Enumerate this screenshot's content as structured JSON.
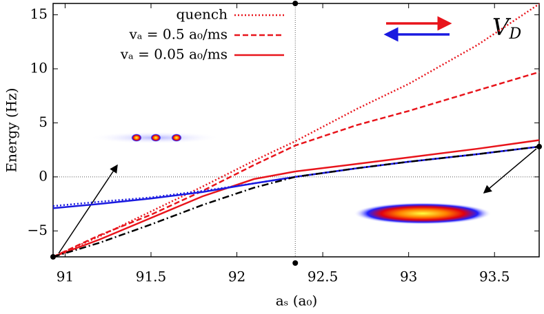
{
  "chart_data": {
    "type": "line",
    "xlabel": "aₛ (a₀)",
    "ylabel": "Energy (Hz)",
    "annotation": {
      "main": "V",
      "sub": "D"
    },
    "x": [
      90.93,
      91.2,
      91.5,
      91.8,
      92.1,
      92.34,
      92.7,
      93.0,
      93.4,
      93.76
    ],
    "series": [
      {
        "name": "quench",
        "color": "#e8141b",
        "style": "dotted",
        "values": [
          -7.4,
          -5.5,
          -3.2,
          -0.9,
          1.5,
          3.3,
          6.3,
          8.6,
          12.2,
          16.0
        ]
      },
      {
        "name": "vₐ = 0.5 a₀/ms",
        "color": "#e8141b",
        "style": "dashed",
        "values": [
          -7.4,
          -5.4,
          -3.5,
          -1.3,
          1.1,
          2.9,
          4.8,
          6.1,
          8.0,
          9.7
        ]
      },
      {
        "name": "vₐ = 0.05 a₀/ms",
        "color": "#e8141b",
        "style": "solid",
        "values": [
          -7.4,
          -5.8,
          -3.8,
          -1.8,
          -0.2,
          0.5,
          1.2,
          1.8,
          2.6,
          3.4
        ]
      },
      {
        "color": "#1a1ae0",
        "style": "dotted",
        "values": [
          -2.7,
          -2.3,
          -1.9,
          -1.3,
          -0.6,
          0,
          0.8,
          1.4,
          2.1,
          2.8
        ]
      },
      {
        "color": "#1a1ae0",
        "style": "solid",
        "values": [
          -2.9,
          -2.5,
          -2.0,
          -1.4,
          -0.6,
          0,
          0.8,
          1.4,
          2.1,
          2.8
        ]
      },
      {
        "color": "#000000",
        "style": "dashdot",
        "values": [
          -7.4,
          -6.1,
          -4.4,
          -2.6,
          -1.0,
          0,
          0.8,
          1.4,
          2.1,
          2.8
        ]
      }
    ],
    "vline": 92.34,
    "hline": 0,
    "xlim": [
      90.93,
      93.76
    ],
    "ylim": [
      -7.4,
      16.05
    ],
    "xticks": [
      91,
      91.5,
      92,
      92.5,
      93,
      93.5
    ],
    "yticks": [
      {
        "value": -5,
        "label": "−5"
      },
      0,
      5,
      10,
      15
    ],
    "legend": "top-left"
  }
}
